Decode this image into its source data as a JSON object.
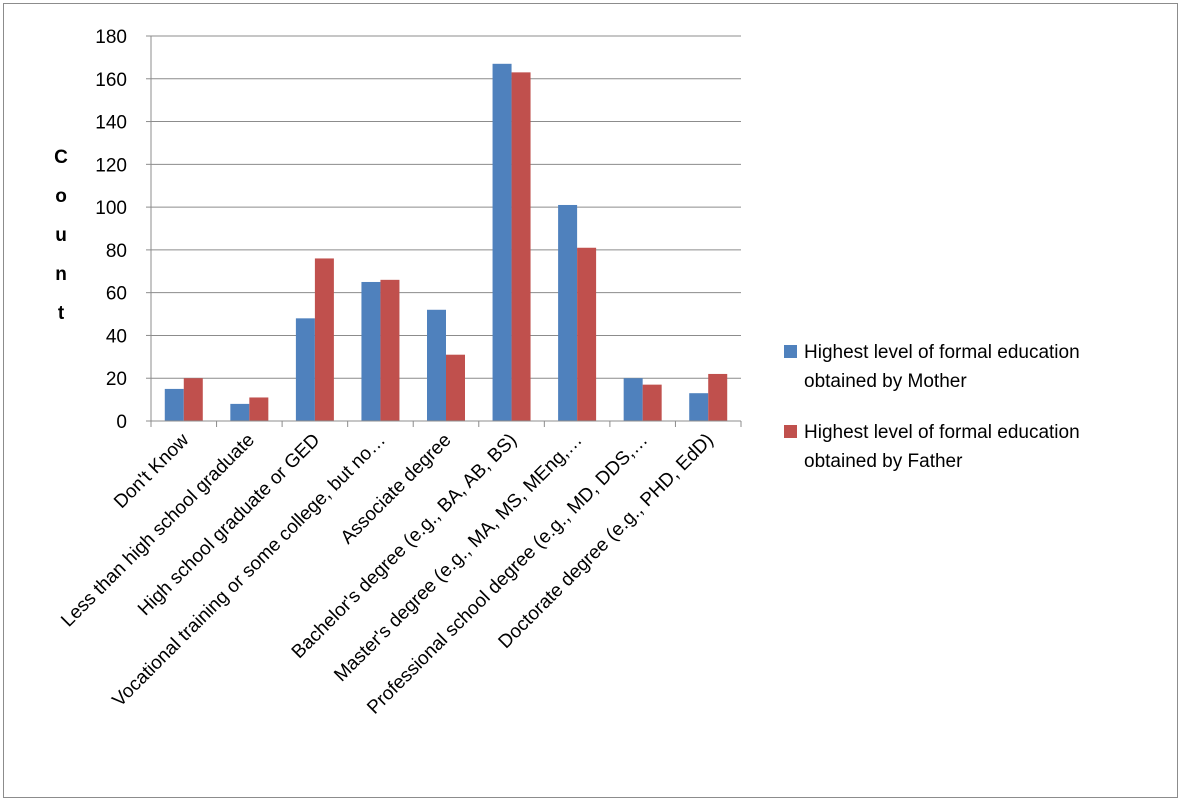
{
  "chart_data": {
    "type": "bar",
    "title": "",
    "xlabel": "",
    "ylabel": "Count",
    "ylim": [
      0,
      180
    ],
    "yticks": [
      0,
      20,
      40,
      60,
      80,
      100,
      120,
      140,
      160,
      180
    ],
    "grid": true,
    "legend_position": "right",
    "categories": [
      "Don't Know",
      "Less than high school graduate",
      "High school graduate or GED",
      "Vocational training or some college, but no…",
      "Associate degree",
      "Bachelor's degree (e.g., BA, AB, BS)",
      "Master's degree (e.g., MA, MS, MEng,…",
      "Professional school degree (e.g., MD, DDS,…",
      "Doctorate degree (e.g., PHD, EdD)"
    ],
    "series": [
      {
        "name": "Highest level of formal education obtained by Mother",
        "legend_lines": [
          "Highest level of formal education",
          "obtained by Mother"
        ],
        "color": "#4F81BD",
        "values": [
          15,
          8,
          48,
          65,
          52,
          167,
          101,
          20,
          13
        ]
      },
      {
        "name": "Highest level of formal education obtained by Father",
        "legend_lines": [
          "Highest level of formal education",
          "obtained by Father"
        ],
        "color": "#C0504D",
        "values": [
          20,
          11,
          76,
          66,
          31,
          163,
          81,
          17,
          22
        ]
      }
    ]
  }
}
